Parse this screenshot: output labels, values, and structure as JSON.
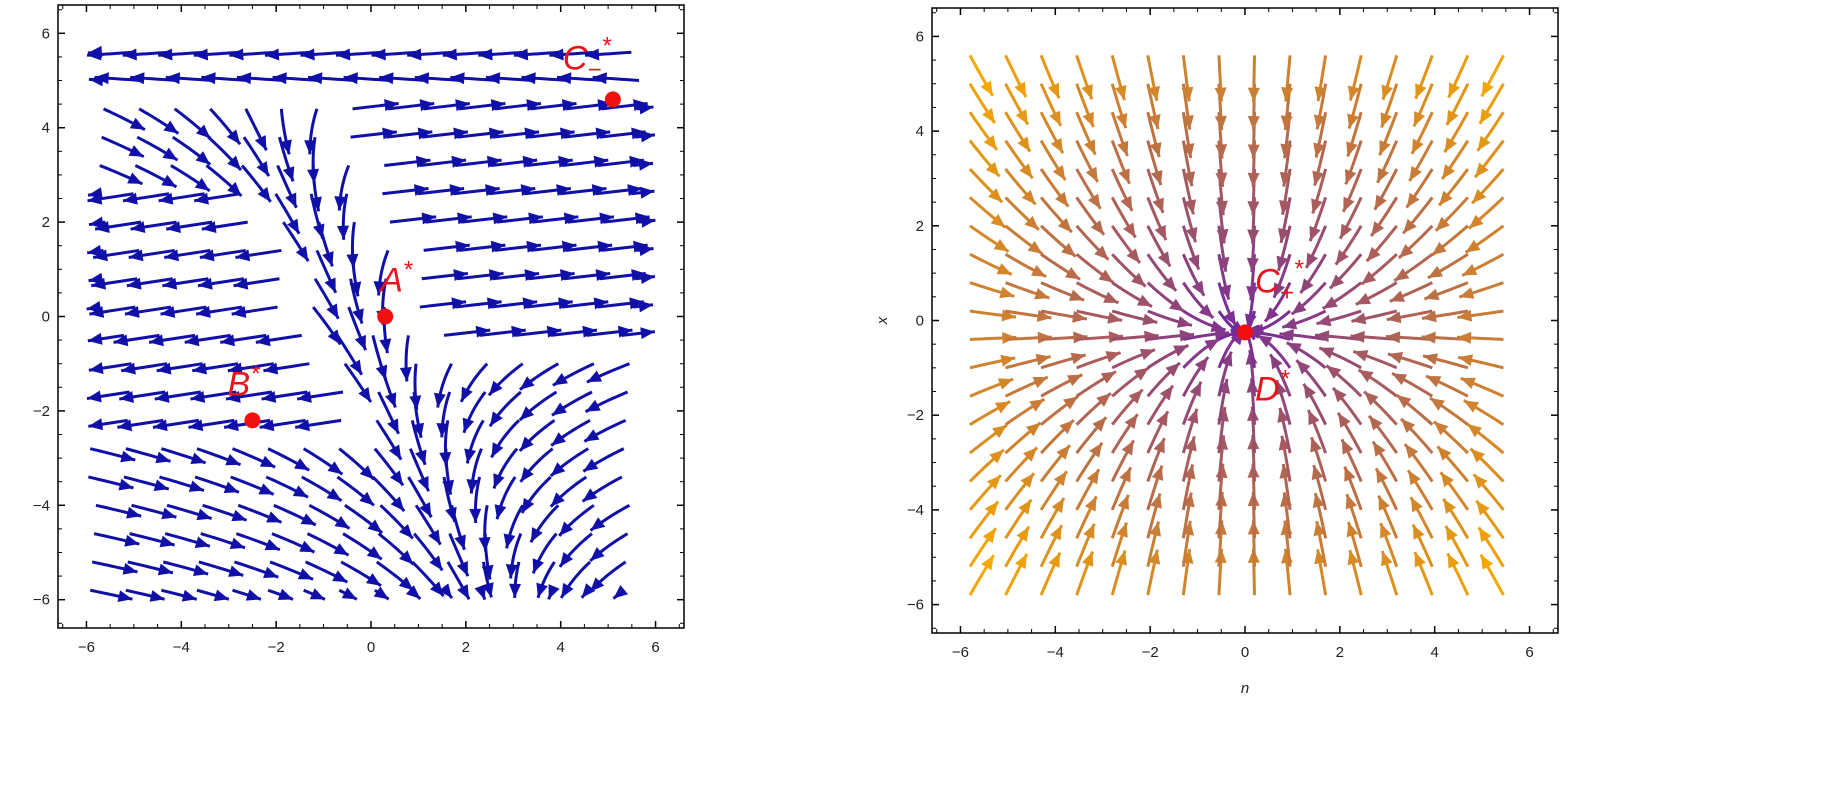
{
  "chart_data": [
    {
      "type": "streamplot",
      "xlim": [
        -6.6,
        6.6
      ],
      "ylim": [
        -6.6,
        6.6
      ],
      "xticks": [
        -6,
        -4,
        -2,
        0,
        2,
        4,
        6
      ],
      "yticks": [
        -6,
        -4,
        -2,
        0,
        2,
        4,
        6
      ],
      "xtick_labels": [
        "−6",
        "−4",
        "−2",
        "0",
        "2",
        "4",
        "6"
      ],
      "ytick_labels": [
        "−6",
        "−4",
        "−2",
        "0",
        "2",
        "4",
        "6"
      ],
      "xlabel": "",
      "ylabel": "",
      "stream_color": "#1010a8",
      "highlight_color": "#f0b400",
      "fixed_points": [
        {
          "label": "A",
          "sup": "*",
          "sub": "",
          "x": 0.3,
          "y": 0.0
        },
        {
          "label": "B",
          "sup": "*",
          "sub": "",
          "x": -2.5,
          "y": -2.2
        },
        {
          "label": "C",
          "sup": "*",
          "sub": "−",
          "x": 5.1,
          "y": 4.6
        }
      ]
    },
    {
      "type": "streamplot",
      "xlim": [
        -6.6,
        6.6
      ],
      "ylim": [
        -6.6,
        6.6
      ],
      "xticks": [
        -6,
        -4,
        -2,
        0,
        2,
        4,
        6
      ],
      "yticks": [
        -6,
        -4,
        -2,
        0,
        2,
        4,
        6
      ],
      "xtick_labels": [
        "−6",
        "−4",
        "−2",
        "0",
        "2",
        "4",
        "6"
      ],
      "ytick_labels": [
        "−6",
        "−4",
        "−2",
        "0",
        "2",
        "4",
        "6"
      ],
      "xlabel": "n",
      "ylabel": "x",
      "color_low": "#6a1fa8",
      "color_high": "#f5a800",
      "fixed_points": [
        {
          "label": "C",
          "sup": "*",
          "sub": "+",
          "x": 0.0,
          "y": -0.25
        },
        {
          "label": "D",
          "sup": "*",
          "sub": "",
          "x": 0.0,
          "y": -0.25
        }
      ]
    }
  ]
}
